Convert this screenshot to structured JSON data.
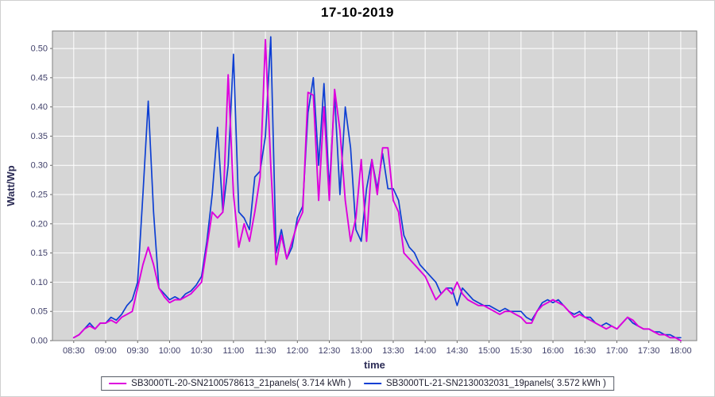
{
  "title_note": "single line chart page, JFreeChart-style solar inverter comparison",
  "chart_data": {
    "type": "line",
    "title": "17-10-2019",
    "xlabel": "time",
    "ylabel": "Watt/Wp",
    "grid": true,
    "legend_position": "bottom",
    "ylim": [
      0,
      0.53
    ],
    "y_ticks": [
      "0.00",
      "0.05",
      "0.10",
      "0.15",
      "0.20",
      "0.25",
      "0.30",
      "0.35",
      "0.40",
      "0.45",
      "0.50"
    ],
    "x_ticks": {
      "labels": [
        "08:30",
        "09:00",
        "09:30",
        "10:00",
        "10:30",
        "11:00",
        "11:30",
        "12:00",
        "12:30",
        "13:00",
        "13:30",
        "14:00",
        "14:30",
        "15:00",
        "15:30",
        "16:00",
        "16:30",
        "17:00",
        "17:30",
        "18:00"
      ],
      "start_minutes": 510,
      "interval_minutes": 30
    },
    "x_domain_minutes": [
      490,
      1095
    ],
    "x_start_time": "08:30",
    "x_end_time": "18:00",
    "x_start_minutes": 510,
    "x_interval_minutes": 5,
    "colors": {
      "plot_bg": "#d6d6d6",
      "grid": "#ffffff",
      "plot_border": "#808080",
      "tick": "#666666",
      "tick_label": "#40406a",
      "axis_label": "#2b2b55",
      "title": "#000000"
    },
    "series": [
      {
        "name": "SB3000TL-20-SN2100578613_21panels( 3.714 kWh )",
        "total_energy": "3.714 kWh",
        "color": "#dd00dd",
        "width": 1.9,
        "values": [
          0.005,
          0.01,
          0.02,
          0.025,
          0.02,
          0.03,
          0.03,
          0.035,
          0.03,
          0.04,
          0.045,
          0.05,
          0.09,
          0.13,
          0.16,
          0.13,
          0.09,
          0.075,
          0.065,
          0.07,
          0.07,
          0.075,
          0.08,
          0.09,
          0.1,
          0.16,
          0.22,
          0.21,
          0.22,
          0.455,
          0.25,
          0.16,
          0.2,
          0.17,
          0.22,
          0.28,
          0.515,
          0.3,
          0.13,
          0.18,
          0.14,
          0.17,
          0.2,
          0.22,
          0.425,
          0.42,
          0.24,
          0.4,
          0.24,
          0.43,
          0.36,
          0.24,
          0.17,
          0.21,
          0.31,
          0.17,
          0.31,
          0.25,
          0.33,
          0.33,
          0.24,
          0.22,
          0.15,
          0.14,
          0.13,
          0.12,
          0.11,
          0.09,
          0.07,
          0.08,
          0.09,
          0.08,
          0.1,
          0.08,
          0.07,
          0.065,
          0.06,
          0.06,
          0.055,
          0.05,
          0.045,
          0.05,
          0.05,
          0.045,
          0.04,
          0.03,
          0.03,
          0.05,
          0.06,
          0.065,
          0.07,
          0.065,
          0.06,
          0.05,
          0.04,
          0.045,
          0.04,
          0.035,
          0.03,
          0.025,
          0.02,
          0.025,
          0.02,
          0.03,
          0.04,
          0.035,
          0.025,
          0.02,
          0.02,
          0.015,
          0.01,
          0.01,
          0.005,
          0.005,
          0.0
        ]
      },
      {
        "name": "SB3000TL-21-SN2130032031_19panels( 3.572 kWh )",
        "total_energy": "3.572 kWh",
        "color": "#0d3fd3",
        "width": 1.7,
        "values": [
          0.005,
          0.01,
          0.02,
          0.03,
          0.02,
          0.03,
          0.03,
          0.04,
          0.035,
          0.045,
          0.06,
          0.07,
          0.1,
          0.25,
          0.41,
          0.22,
          0.09,
          0.08,
          0.07,
          0.075,
          0.07,
          0.08,
          0.085,
          0.095,
          0.11,
          0.17,
          0.25,
          0.365,
          0.22,
          0.3,
          0.49,
          0.22,
          0.21,
          0.19,
          0.28,
          0.29,
          0.35,
          0.52,
          0.15,
          0.19,
          0.14,
          0.16,
          0.21,
          0.23,
          0.39,
          0.45,
          0.3,
          0.44,
          0.26,
          0.42,
          0.25,
          0.4,
          0.33,
          0.19,
          0.17,
          0.26,
          0.31,
          0.26,
          0.32,
          0.26,
          0.26,
          0.24,
          0.18,
          0.16,
          0.15,
          0.13,
          0.12,
          0.11,
          0.1,
          0.08,
          0.09,
          0.09,
          0.06,
          0.09,
          0.08,
          0.07,
          0.065,
          0.06,
          0.06,
          0.055,
          0.05,
          0.055,
          0.05,
          0.05,
          0.05,
          0.04,
          0.035,
          0.05,
          0.065,
          0.07,
          0.065,
          0.07,
          0.06,
          0.05,
          0.045,
          0.05,
          0.04,
          0.04,
          0.03,
          0.025,
          0.03,
          0.025,
          0.02,
          0.03,
          0.04,
          0.03,
          0.025,
          0.02,
          0.02,
          0.015,
          0.015,
          0.01,
          0.01,
          0.005,
          0.005
        ]
      }
    ]
  }
}
